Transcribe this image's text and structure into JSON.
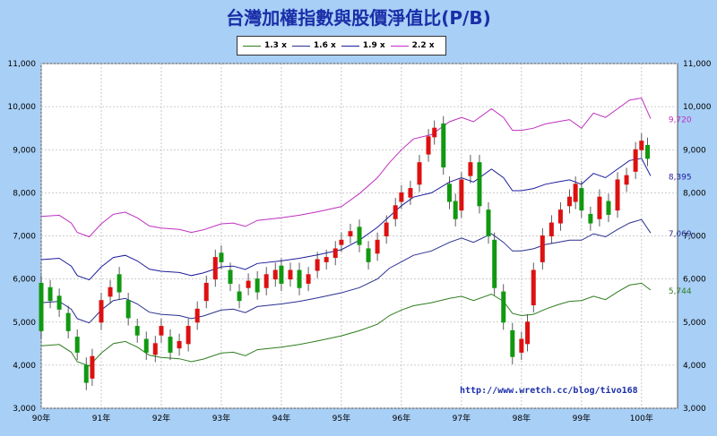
{
  "title": "台灣加權指數與股價淨值比(P/B)",
  "watermark": "http://www.wretch.cc/blog/tivo168",
  "colors": {
    "bg": "#a8cff6",
    "plot": "#ffffff",
    "up": "#dd1111",
    "down": "#119911",
    "title": "#1a2ea8"
  },
  "chart_data": {
    "type": "line",
    "title": "台灣加權指數與股價淨值比(P/B)",
    "xlabel": "",
    "ylabel": "",
    "ylim": [
      3000,
      11000
    ],
    "yticks": [
      "3,000",
      "4,000",
      "5,000",
      "6,000",
      "7,000",
      "8,000",
      "9,000",
      "10,000",
      "11,000"
    ],
    "ytick_values": [
      3000,
      4000,
      5000,
      6000,
      7000,
      8000,
      9000,
      10000,
      11000
    ],
    "x_range": [
      90,
      100.6
    ],
    "xticks": [
      "90年",
      "91年",
      "92年",
      "93年",
      "94年",
      "95年",
      "96年",
      "97年",
      "98年",
      "99年",
      "100年"
    ],
    "xtick_values": [
      90,
      91,
      92,
      93,
      94,
      95,
      96,
      97,
      98,
      99,
      100
    ],
    "grid": true,
    "legend_position": "top-center",
    "series": [
      {
        "name": "1.3 x",
        "color": "#2e7d1e",
        "end_label": "5,744",
        "points": [
          [
            90.0,
            4450
          ],
          [
            90.3,
            4480
          ],
          [
            90.5,
            4300
          ],
          [
            90.6,
            4080
          ],
          [
            90.8,
            3980
          ],
          [
            91.0,
            4280
          ],
          [
            91.2,
            4500
          ],
          [
            91.4,
            4550
          ],
          [
            91.6,
            4420
          ],
          [
            91.8,
            4230
          ],
          [
            92.0,
            4180
          ],
          [
            92.3,
            4150
          ],
          [
            92.5,
            4080
          ],
          [
            92.7,
            4140
          ],
          [
            93.0,
            4280
          ],
          [
            93.2,
            4300
          ],
          [
            93.4,
            4220
          ],
          [
            93.6,
            4360
          ],
          [
            94.0,
            4420
          ],
          [
            94.3,
            4480
          ],
          [
            94.6,
            4560
          ],
          [
            95.0,
            4680
          ],
          [
            95.3,
            4800
          ],
          [
            95.6,
            4950
          ],
          [
            95.8,
            5150
          ],
          [
            96.0,
            5280
          ],
          [
            96.2,
            5380
          ],
          [
            96.5,
            5450
          ],
          [
            96.8,
            5550
          ],
          [
            97.0,
            5600
          ],
          [
            97.2,
            5500
          ],
          [
            97.5,
            5650
          ],
          [
            97.7,
            5480
          ],
          [
            97.85,
            5200
          ],
          [
            98.0,
            5150
          ],
          [
            98.2,
            5180
          ],
          [
            98.4,
            5300
          ],
          [
            98.6,
            5400
          ],
          [
            98.8,
            5480
          ],
          [
            99.0,
            5500
          ],
          [
            99.2,
            5600
          ],
          [
            99.4,
            5520
          ],
          [
            99.6,
            5700
          ],
          [
            99.8,
            5860
          ],
          [
            100.0,
            5900
          ],
          [
            100.15,
            5744
          ]
        ]
      },
      {
        "name": "1.6 x",
        "color": "#2a2f8f",
        "end_label": "7,069",
        "points": [
          [
            90.0,
            5450
          ],
          [
            90.3,
            5480
          ],
          [
            90.5,
            5300
          ],
          [
            90.6,
            5080
          ],
          [
            90.8,
            4980
          ],
          [
            91.0,
            5280
          ],
          [
            91.2,
            5500
          ],
          [
            91.4,
            5550
          ],
          [
            91.6,
            5420
          ],
          [
            91.8,
            5230
          ],
          [
            92.0,
            5180
          ],
          [
            92.3,
            5150
          ],
          [
            92.5,
            5080
          ],
          [
            92.7,
            5140
          ],
          [
            93.0,
            5280
          ],
          [
            93.2,
            5300
          ],
          [
            93.4,
            5220
          ],
          [
            93.6,
            5360
          ],
          [
            94.0,
            5420
          ],
          [
            94.3,
            5480
          ],
          [
            94.6,
            5560
          ],
          [
            95.0,
            5680
          ],
          [
            95.3,
            5800
          ],
          [
            95.6,
            6000
          ],
          [
            95.8,
            6250
          ],
          [
            96.0,
            6400
          ],
          [
            96.2,
            6550
          ],
          [
            96.5,
            6650
          ],
          [
            96.8,
            6850
          ],
          [
            97.0,
            6950
          ],
          [
            97.2,
            6850
          ],
          [
            97.5,
            7050
          ],
          [
            97.7,
            6850
          ],
          [
            97.85,
            6650
          ],
          [
            98.0,
            6650
          ],
          [
            98.2,
            6700
          ],
          [
            98.4,
            6800
          ],
          [
            98.6,
            6850
          ],
          [
            98.8,
            6900
          ],
          [
            99.0,
            6900
          ],
          [
            99.2,
            7050
          ],
          [
            99.4,
            6980
          ],
          [
            99.6,
            7150
          ],
          [
            99.8,
            7300
          ],
          [
            100.0,
            7380
          ],
          [
            100.15,
            7069
          ]
        ]
      },
      {
        "name": "1.9 x",
        "color": "#1c1c9c",
        "end_label": "8,395",
        "points": [
          [
            90.0,
            6450
          ],
          [
            90.3,
            6480
          ],
          [
            90.5,
            6300
          ],
          [
            90.6,
            6080
          ],
          [
            90.8,
            5980
          ],
          [
            91.0,
            6280
          ],
          [
            91.2,
            6500
          ],
          [
            91.4,
            6550
          ],
          [
            91.6,
            6420
          ],
          [
            91.8,
            6230
          ],
          [
            92.0,
            6180
          ],
          [
            92.3,
            6150
          ],
          [
            92.5,
            6080
          ],
          [
            92.7,
            6140
          ],
          [
            93.0,
            6280
          ],
          [
            93.2,
            6300
          ],
          [
            93.4,
            6220
          ],
          [
            93.6,
            6360
          ],
          [
            94.0,
            6420
          ],
          [
            94.3,
            6480
          ],
          [
            94.6,
            6560
          ],
          [
            95.0,
            6680
          ],
          [
            95.3,
            6900
          ],
          [
            95.6,
            7200
          ],
          [
            95.8,
            7450
          ],
          [
            96.0,
            7700
          ],
          [
            96.2,
            7900
          ],
          [
            96.5,
            8000
          ],
          [
            96.8,
            8250
          ],
          [
            97.0,
            8350
          ],
          [
            97.2,
            8250
          ],
          [
            97.5,
            8550
          ],
          [
            97.7,
            8350
          ],
          [
            97.85,
            8050
          ],
          [
            98.0,
            8050
          ],
          [
            98.2,
            8100
          ],
          [
            98.4,
            8200
          ],
          [
            98.6,
            8250
          ],
          [
            98.8,
            8300
          ],
          [
            99.0,
            8200
          ],
          [
            99.2,
            8450
          ],
          [
            99.4,
            8350
          ],
          [
            99.6,
            8550
          ],
          [
            99.8,
            8750
          ],
          [
            100.0,
            8800
          ],
          [
            100.15,
            8395
          ]
        ]
      },
      {
        "name": "2.2 x",
        "color": "#bf2fbf",
        "end_label": "9,720",
        "points": [
          [
            90.0,
            7450
          ],
          [
            90.3,
            7480
          ],
          [
            90.5,
            7300
          ],
          [
            90.6,
            7080
          ],
          [
            90.8,
            6980
          ],
          [
            91.0,
            7280
          ],
          [
            91.2,
            7500
          ],
          [
            91.4,
            7550
          ],
          [
            91.6,
            7420
          ],
          [
            91.8,
            7230
          ],
          [
            92.0,
            7180
          ],
          [
            92.3,
            7150
          ],
          [
            92.5,
            7080
          ],
          [
            92.7,
            7140
          ],
          [
            93.0,
            7280
          ],
          [
            93.2,
            7300
          ],
          [
            93.4,
            7220
          ],
          [
            93.6,
            7360
          ],
          [
            94.0,
            7420
          ],
          [
            94.3,
            7480
          ],
          [
            94.6,
            7560
          ],
          [
            95.0,
            7680
          ],
          [
            95.3,
            7980
          ],
          [
            95.6,
            8350
          ],
          [
            95.8,
            8700
          ],
          [
            96.0,
            9000
          ],
          [
            96.2,
            9250
          ],
          [
            96.5,
            9350
          ],
          [
            96.8,
            9650
          ],
          [
            97.0,
            9750
          ],
          [
            97.2,
            9650
          ],
          [
            97.5,
            9950
          ],
          [
            97.7,
            9750
          ],
          [
            97.85,
            9450
          ],
          [
            98.0,
            9450
          ],
          [
            98.2,
            9500
          ],
          [
            98.4,
            9600
          ],
          [
            98.6,
            9650
          ],
          [
            98.8,
            9700
          ],
          [
            99.0,
            9500
          ],
          [
            99.2,
            9850
          ],
          [
            99.4,
            9750
          ],
          [
            99.6,
            9950
          ],
          [
            99.8,
            10150
          ],
          [
            100.0,
            10200
          ],
          [
            100.15,
            9720
          ]
        ]
      }
    ],
    "index_candles": [
      [
        90.0,
        5900,
        4800
      ],
      [
        90.15,
        5800,
        5500
      ],
      [
        90.3,
        5600,
        5300
      ],
      [
        90.45,
        5200,
        4800
      ],
      [
        90.6,
        4650,
        4300
      ],
      [
        90.75,
        4000,
        3600
      ],
      [
        90.85,
        3700,
        4200
      ],
      [
        91.0,
        5000,
        5500
      ],
      [
        91.15,
        5600,
        5800
      ],
      [
        91.3,
        6100,
        5700
      ],
      [
        91.45,
        5500,
        5100
      ],
      [
        91.6,
        4900,
        4700
      ],
      [
        91.75,
        4600,
        4300
      ],
      [
        91.9,
        4250,
        4500
      ],
      [
        92.0,
        4700,
        4900
      ],
      [
        92.15,
        4650,
        4300
      ],
      [
        92.3,
        4400,
        4550
      ],
      [
        92.45,
        4500,
        4900
      ],
      [
        92.6,
        5000,
        5300
      ],
      [
        92.75,
        5500,
        5900
      ],
      [
        92.9,
        6000,
        6500
      ],
      [
        93.0,
        6600,
        6400
      ],
      [
        93.15,
        6200,
        5900
      ],
      [
        93.3,
        5700,
        5500
      ],
      [
        93.45,
        5800,
        5950
      ],
      [
        93.6,
        6000,
        5700
      ],
      [
        93.75,
        5800,
        6100
      ],
      [
        93.9,
        6000,
        6200
      ],
      [
        94.0,
        6300,
        5900
      ],
      [
        94.15,
        6000,
        6200
      ],
      [
        94.3,
        6200,
        5800
      ],
      [
        94.45,
        5900,
        6100
      ],
      [
        94.6,
        6200,
        6450
      ],
      [
        94.75,
        6400,
        6500
      ],
      [
        94.9,
        6500,
        6700
      ],
      [
        95.0,
        6800,
        6900
      ],
      [
        95.15,
        7000,
        7100
      ],
      [
        95.3,
        7200,
        6800
      ],
      [
        95.45,
        6700,
        6400
      ],
      [
        95.6,
        6600,
        6900
      ],
      [
        95.75,
        7000,
        7300
      ],
      [
        95.9,
        7400,
        7700
      ],
      [
        96.0,
        7800,
        8000
      ],
      [
        96.15,
        7900,
        8100
      ],
      [
        96.3,
        8200,
        8700
      ],
      [
        96.45,
        8900,
        9300
      ],
      [
        96.55,
        9300,
        9500
      ],
      [
        96.7,
        9600,
        8600
      ],
      [
        96.8,
        8200,
        7800
      ],
      [
        96.9,
        7800,
        7400
      ],
      [
        97.0,
        7600,
        8300
      ],
      [
        97.15,
        8400,
        8700
      ],
      [
        97.3,
        8700,
        7700
      ],
      [
        97.45,
        7600,
        7000
      ],
      [
        97.55,
        6900,
        5800
      ],
      [
        97.7,
        5700,
        5000
      ],
      [
        97.85,
        4800,
        4200
      ],
      [
        98.0,
        4300,
        4600
      ],
      [
        98.1,
        4500,
        5000
      ],
      [
        98.2,
        5400,
        6200
      ],
      [
        98.35,
        6400,
        7000
      ],
      [
        98.5,
        7000,
        7300
      ],
      [
        98.65,
        7300,
        7600
      ],
      [
        98.8,
        7700,
        7900
      ],
      [
        98.9,
        7800,
        8200
      ],
      [
        99.0,
        8100,
        7600
      ],
      [
        99.15,
        7500,
        7300
      ],
      [
        99.3,
        7400,
        7900
      ],
      [
        99.45,
        7800,
        7500
      ],
      [
        99.6,
        7600,
        8300
      ],
      [
        99.75,
        8200,
        8400
      ],
      [
        99.9,
        8500,
        9000
      ],
      [
        100.0,
        9000,
        9200
      ],
      [
        100.1,
        9100,
        8800
      ]
    ]
  }
}
